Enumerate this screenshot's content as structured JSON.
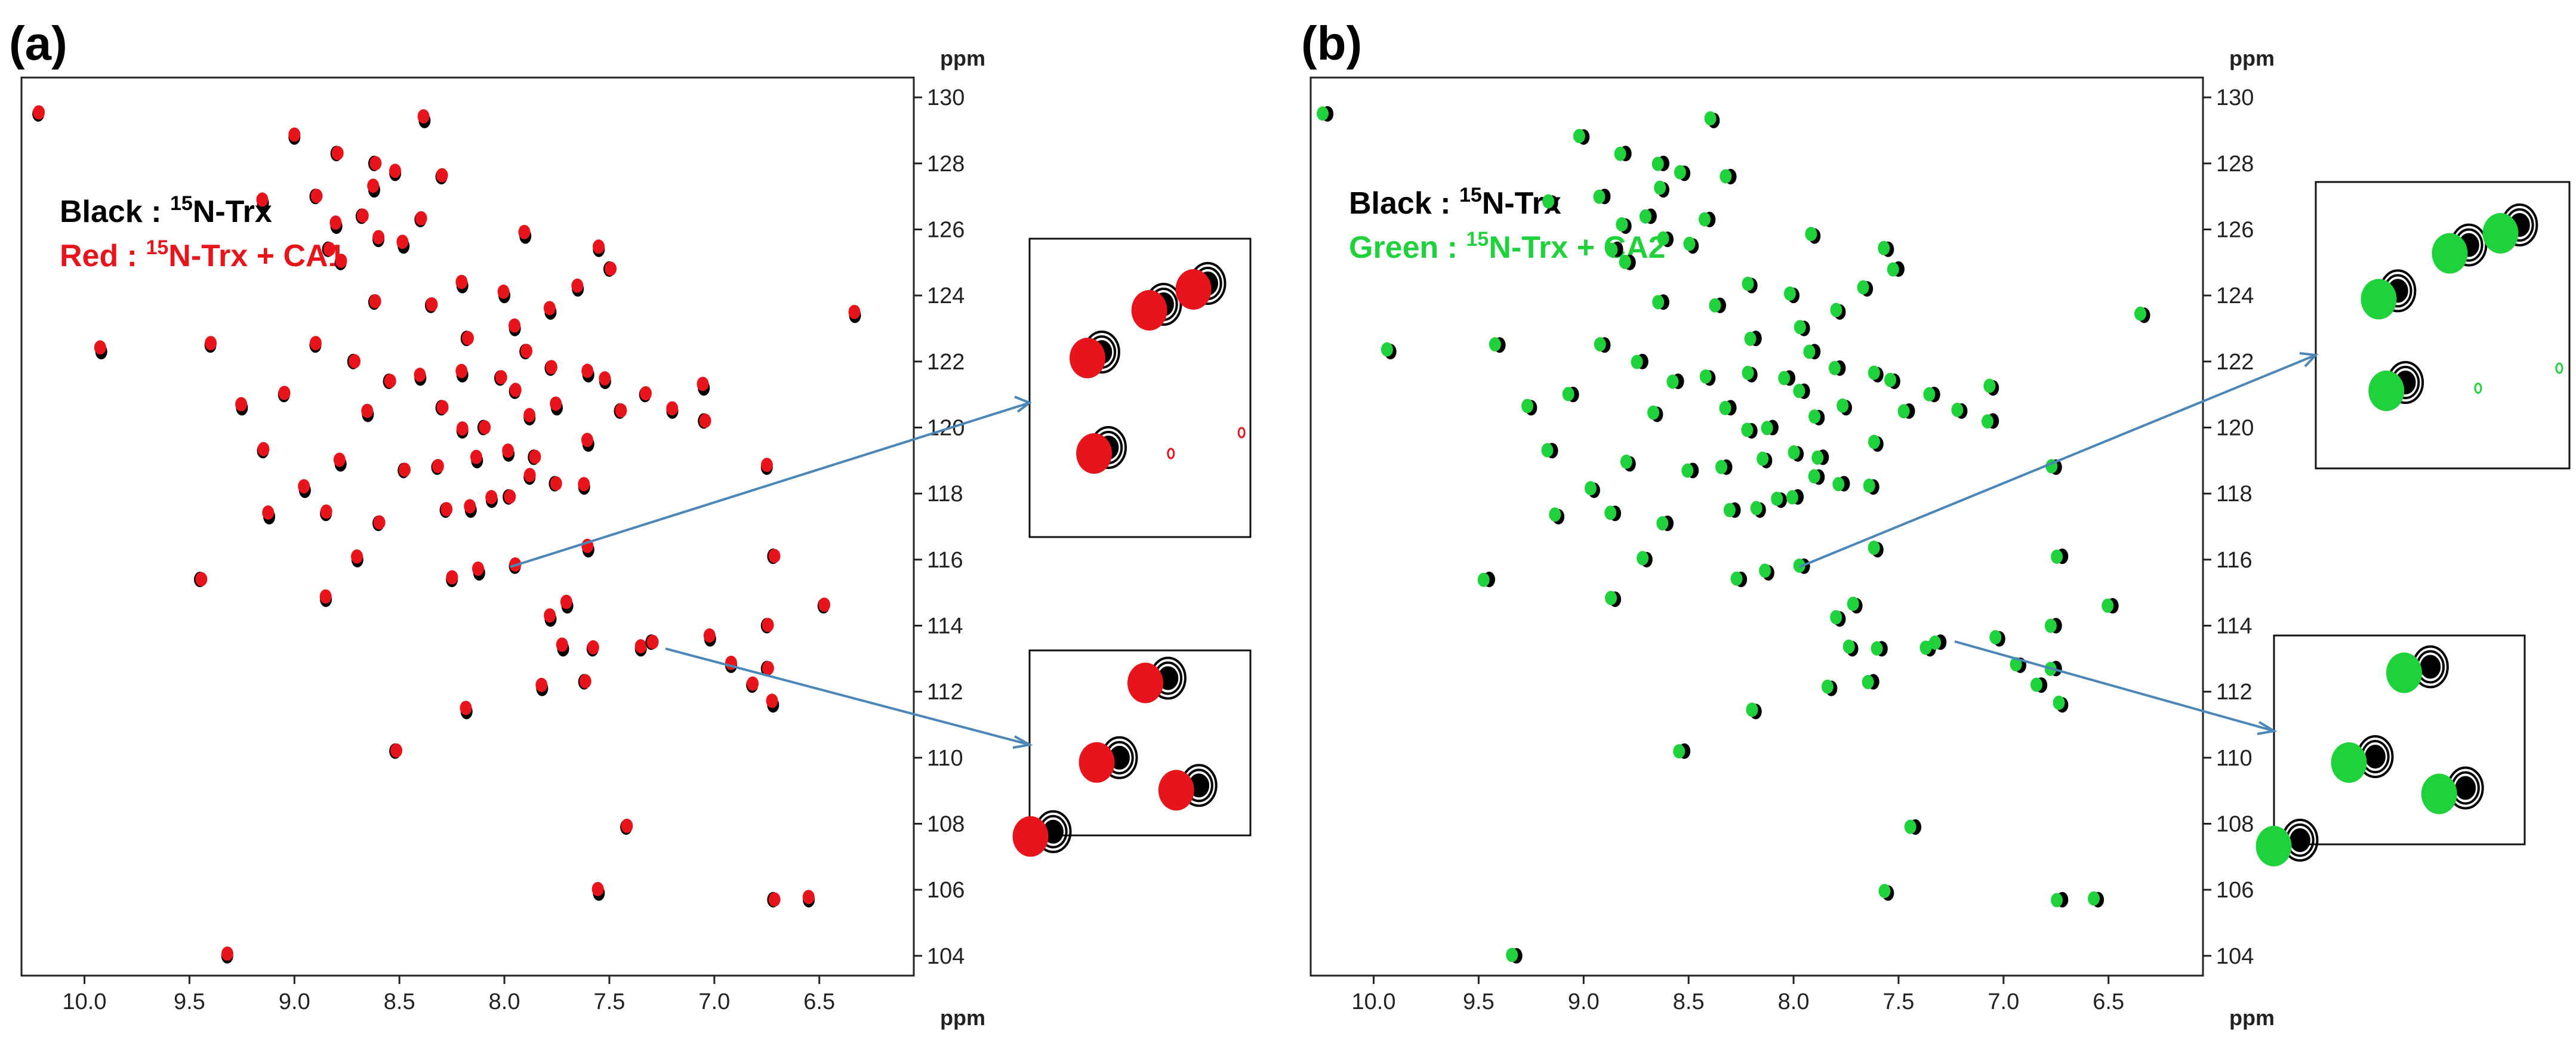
{
  "chart_data": [
    {
      "type": "scatter",
      "panel_label": "(a)",
      "title": "",
      "xlabel": "ppm",
      "ylabel": "ppm",
      "xlim": [
        10.3,
        6.05
      ],
      "ylim": [
        130.6,
        103.4
      ],
      "x_ticks": [
        "10.0",
        "9.5",
        "9.0",
        "8.5",
        "8.0",
        "7.5",
        "7.0",
        "6.5"
      ],
      "y_ticks": [
        "104",
        "106",
        "108",
        "110",
        "112",
        "114",
        "116",
        "118",
        "120",
        "122",
        "124",
        "126",
        "128",
        "130"
      ],
      "grid": false,
      "legend_position": "top-left",
      "legend": [
        {
          "prefix": "Black : ",
          "sup": "15",
          "suffix": "N-Trx",
          "color": "#000000"
        },
        {
          "prefix": "Red : ",
          "sup": "15",
          "suffix": "N-Trx + CA1",
          "color": "#e8141b"
        }
      ],
      "series": [
        {
          "name": "Black : 15N-Trx",
          "color": "#000000"
        },
        {
          "name": "Red : 15N-Trx + CA1",
          "color": "#e8141b"
        }
      ],
      "zoom_regions": [
        {
          "x_range": [
            8.38,
            8.0
          ],
          "y_range": [
            117.0,
            119.6
          ]
        },
        {
          "x_range": [
            7.6,
            7.3
          ],
          "y_range": [
            119.6,
            121.0
          ]
        }
      ]
    },
    {
      "type": "scatter",
      "panel_label": "(b)",
      "title": "",
      "xlabel": "ppm",
      "ylabel": "ppm",
      "xlim": [
        10.3,
        6.05
      ],
      "ylim": [
        130.6,
        103.4
      ],
      "x_ticks": [
        "10.0",
        "9.5",
        "9.0",
        "8.5",
        "8.0",
        "7.5",
        "7.0",
        "6.5"
      ],
      "y_ticks": [
        "104",
        "106",
        "108",
        "110",
        "112",
        "114",
        "116",
        "118",
        "120",
        "122",
        "124",
        "126",
        "128",
        "130"
      ],
      "grid": false,
      "legend_position": "top-left",
      "legend": [
        {
          "prefix": "Black : ",
          "sup": "15",
          "suffix": "N-Trx",
          "color": "#000000"
        },
        {
          "prefix": "Green : ",
          "sup": "15",
          "suffix": "N-Trx + CA2",
          "color": "#1fd23c"
        }
      ],
      "series": [
        {
          "name": "Black : 15N-Trx",
          "color": "#000000"
        },
        {
          "name": "Green : 15N-Trx + CA2",
          "color": "#1fd23c"
        }
      ],
      "zoom_regions": [
        {
          "x_range": [
            8.38,
            8.0
          ],
          "y_range": [
            117.0,
            119.6
          ]
        },
        {
          "x_range": [
            7.6,
            7.3
          ],
          "y_range": [
            119.6,
            121.0
          ]
        }
      ]
    }
  ],
  "peaks": [
    [
      9.32,
      104.0
    ],
    [
      6.72,
      105.7
    ],
    [
      6.55,
      105.7
    ],
    [
      7.55,
      105.9
    ],
    [
      7.42,
      107.9
    ],
    [
      8.52,
      110.2
    ],
    [
      8.18,
      111.4
    ],
    [
      7.82,
      112.1
    ],
    [
      7.62,
      112.3
    ],
    [
      7.58,
      113.3
    ],
    [
      7.72,
      113.3
    ],
    [
      7.35,
      113.3
    ],
    [
      7.3,
      113.5
    ],
    [
      6.92,
      112.8
    ],
    [
      6.72,
      111.6
    ],
    [
      6.82,
      112.2
    ],
    [
      6.75,
      112.7
    ],
    [
      7.02,
      113.6
    ],
    [
      7.78,
      114.2
    ],
    [
      6.75,
      114.0
    ],
    [
      6.48,
      114.6
    ],
    [
      7.7,
      114.6
    ],
    [
      8.85,
      114.8
    ],
    [
      9.45,
      115.4
    ],
    [
      8.25,
      115.4
    ],
    [
      8.12,
      115.6
    ],
    [
      7.95,
      115.8
    ],
    [
      6.72,
      116.1
    ],
    [
      8.7,
      116.0
    ],
    [
      7.6,
      116.3
    ],
    [
      8.6,
      117.1
    ],
    [
      8.28,
      117.5
    ],
    [
      8.16,
      117.5
    ],
    [
      8.06,
      117.8
    ],
    [
      7.98,
      117.9
    ],
    [
      8.85,
      117.4
    ],
    [
      9.12,
      117.3
    ],
    [
      7.88,
      118.5
    ],
    [
      7.76,
      118.3
    ],
    [
      7.62,
      118.2
    ],
    [
      8.95,
      118.1
    ],
    [
      8.32,
      118.8
    ],
    [
      8.48,
      118.7
    ],
    [
      8.13,
      119.0
    ],
    [
      7.98,
      119.2
    ],
    [
      7.86,
      119.1
    ],
    [
      9.15,
      119.3
    ],
    [
      8.78,
      118.9
    ],
    [
      8.2,
      119.9
    ],
    [
      8.1,
      120.0
    ],
    [
      7.88,
      120.3
    ],
    [
      7.75,
      120.6
    ],
    [
      7.95,
      121.1
    ],
    [
      8.3,
      120.6
    ],
    [
      8.65,
      120.4
    ],
    [
      9.25,
      120.6
    ],
    [
      7.45,
      120.5
    ],
    [
      7.33,
      121.0
    ],
    [
      7.05,
      121.2
    ],
    [
      7.2,
      120.5
    ],
    [
      7.05,
      120.2
    ],
    [
      6.75,
      118.8
    ],
    [
      7.6,
      119.5
    ],
    [
      9.05,
      121.0
    ],
    [
      8.55,
      121.4
    ],
    [
      8.4,
      121.5
    ],
    [
      8.2,
      121.6
    ],
    [
      8.02,
      121.5
    ],
    [
      7.78,
      121.8
    ],
    [
      7.6,
      121.6
    ],
    [
      7.52,
      121.4
    ],
    [
      8.72,
      122.0
    ],
    [
      8.9,
      122.5
    ],
    [
      9.92,
      122.3
    ],
    [
      9.4,
      122.5
    ],
    [
      8.18,
      122.7
    ],
    [
      7.95,
      123.0
    ],
    [
      7.78,
      123.5
    ],
    [
      8.35,
      123.7
    ],
    [
      8.62,
      123.8
    ],
    [
      8.0,
      124.0
    ],
    [
      7.65,
      124.2
    ],
    [
      7.5,
      124.8
    ],
    [
      8.78,
      125.0
    ],
    [
      8.48,
      125.5
    ],
    [
      8.6,
      125.7
    ],
    [
      8.84,
      125.4
    ],
    [
      7.55,
      125.4
    ],
    [
      7.9,
      125.8
    ],
    [
      8.4,
      126.3
    ],
    [
      8.68,
      126.4
    ],
    [
      8.8,
      126.1
    ],
    [
      9.15,
      126.8
    ],
    [
      8.9,
      127.0
    ],
    [
      8.3,
      127.6
    ],
    [
      8.62,
      127.2
    ],
    [
      8.52,
      127.7
    ],
    [
      8.62,
      128.0
    ],
    [
      9.0,
      128.8
    ],
    [
      8.38,
      129.3
    ],
    [
      10.22,
      129.5
    ],
    [
      8.8,
      128.3
    ],
    [
      6.33,
      123.4
    ],
    [
      8.2,
      124.3
    ],
    [
      7.9,
      122.3
    ]
  ],
  "zoom1_blobs": [
    [
      0.3,
      0.38,
      1
    ],
    [
      0.33,
      0.7,
      1
    ],
    [
      0.58,
      0.22,
      1
    ],
    [
      0.78,
      0.15,
      1
    ],
    [
      0.64,
      0.72,
      0
    ],
    [
      0.96,
      0.65,
      0
    ]
  ],
  "zoom2_blobs": [
    [
      0.6,
      0.15,
      1
    ],
    [
      0.38,
      0.58,
      1
    ],
    [
      0.74,
      0.73,
      1
    ],
    [
      0.08,
      0.98,
      1
    ]
  ],
  "colors": {
    "reference": "#000000",
    "red": "#e8141b",
    "green": "#1fd23c",
    "zoom_box": "#2d8fb5",
    "arrow": "#4a86b8"
  }
}
